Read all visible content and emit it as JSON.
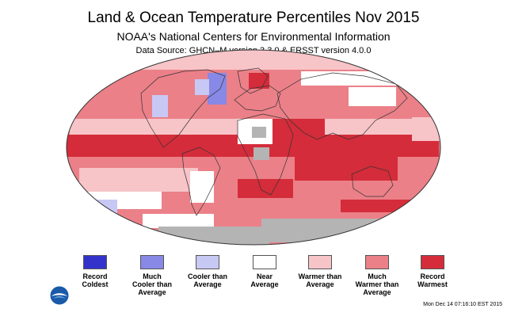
{
  "header": {
    "title": "Land & Ocean Temperature Percentiles Nov 2015",
    "subtitle": "NOAA's National Centers for Environmental Information",
    "source": "Data Source: GHCN–M version 3.3.0 & ERSST version 4.0.0"
  },
  "colors": {
    "record_coldest": "#3333cc",
    "much_cooler": "#8888e6",
    "cooler": "#c8c8f4",
    "near": "#ffffff",
    "warmer": "#f7c4c8",
    "much_warmer": "#eb8088",
    "record_warmest": "#d42c3a",
    "no_data": "#b4b4b4"
  },
  "legend": [
    {
      "key": "record_coldest",
      "lines": [
        "Record",
        "Coldest"
      ]
    },
    {
      "key": "much_cooler",
      "lines": [
        "Much",
        "Cooler than",
        "Average"
      ]
    },
    {
      "key": "cooler",
      "lines": [
        "Cooler than",
        "Average"
      ]
    },
    {
      "key": "near",
      "lines": [
        "Near",
        "Average"
      ]
    },
    {
      "key": "warmer",
      "lines": [
        "Warmer than",
        "Average"
      ]
    },
    {
      "key": "much_warmer",
      "lines": [
        "Much",
        "Warmer than",
        "Average"
      ]
    },
    {
      "key": "record_warmest",
      "lines": [
        "Record",
        "Warmest"
      ]
    }
  ],
  "timestamp": "Mon Dec 14 07:16:10 EST 2015"
}
